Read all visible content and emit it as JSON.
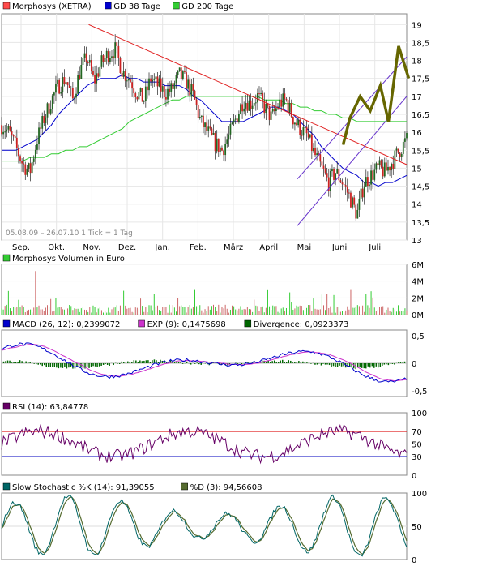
{
  "chart_data": [
    {
      "type": "candlestick",
      "legend": [
        {
          "label": "Morphosys (XETRA)",
          "color": "#ff4b4b"
        },
        {
          "label": "GD 38 Tage",
          "color": "#0000cc"
        },
        {
          "label": "GD 200 Tage",
          "color": "#33cc33"
        }
      ],
      "range_note": "05.08.09 – 26.07.10   1 Tick = 1 Tag",
      "x_ticks": [
        "Sep.",
        "Okt.",
        "Nov.",
        "Dez.",
        "Jan.",
        "Feb.",
        "März",
        "April",
        "Mai",
        "Juni",
        "Juli"
      ],
      "y_ticks": [
        "19",
        "18,5",
        "18",
        "17,5",
        "17",
        "16,5",
        "16",
        "15,5",
        "15",
        "14,5",
        "14",
        "13,5",
        "13"
      ],
      "ylim": [
        13,
        19.3
      ],
      "price": [
        16.2,
        16.0,
        15.6,
        15.1,
        14.9,
        15.8,
        16.4,
        16.9,
        17.3,
        17.5,
        16.9,
        17.7,
        18.1,
        17.4,
        17.9,
        18.2,
        18.3,
        17.7,
        17.5,
        17.1,
        16.9,
        17.5,
        17.3,
        17.1,
        17.2,
        17.6,
        17.4,
        17.0,
        16.3,
        16.0,
        15.7,
        15.5,
        15.9,
        16.4,
        16.9,
        16.8,
        17.0,
        16.7,
        16.4,
        16.8,
        16.9,
        16.4,
        16.1,
        15.9,
        15.4,
        15.0,
        14.6,
        14.9,
        14.6,
        14.2,
        13.7,
        14.6,
        14.8,
        15.0,
        14.9,
        15.2,
        15.5,
        15.8
      ],
      "sma38": [
        15.5,
        15.5,
        15.5,
        15.6,
        15.7,
        15.8,
        16.0,
        16.2,
        16.5,
        16.7,
        16.9,
        17.1,
        17.3,
        17.4,
        17.5,
        17.5,
        17.5,
        17.6,
        17.5,
        17.5,
        17.4,
        17.4,
        17.4,
        17.3,
        17.3,
        17.3,
        17.2,
        17.0,
        16.9,
        16.7,
        16.5,
        16.3,
        16.3,
        16.3,
        16.3,
        16.4,
        16.5,
        16.6,
        16.7,
        16.7,
        16.6,
        16.5,
        16.3,
        16.1,
        15.9,
        15.6,
        15.4,
        15.2,
        15.0,
        14.9,
        14.8,
        14.6,
        14.6,
        14.5,
        14.6,
        14.6,
        14.7,
        14.8
      ],
      "sma200": [
        15.2,
        15.2,
        15.2,
        15.2,
        15.3,
        15.3,
        15.3,
        15.4,
        15.4,
        15.5,
        15.5,
        15.6,
        15.6,
        15.7,
        15.8,
        15.9,
        16.0,
        16.1,
        16.3,
        16.4,
        16.5,
        16.6,
        16.7,
        16.8,
        16.9,
        16.9,
        17.0,
        17.0,
        17.0,
        17.0,
        17.0,
        17.0,
        17.0,
        17.0,
        17.0,
        17.0,
        17.0,
        16.9,
        16.9,
        16.9,
        16.8,
        16.8,
        16.7,
        16.7,
        16.6,
        16.6,
        16.5,
        16.5,
        16.4,
        16.4,
        16.3,
        16.3,
        16.3,
        16.3,
        16.3,
        16.3,
        16.3,
        16.3
      ],
      "trend_lines": [
        {
          "name": "downtrend",
          "from": [
            0.215,
            19.0
          ],
          "to": [
            1.0,
            15.1
          ]
        },
        {
          "name": "channel-upper",
          "from": [
            0.73,
            14.7
          ],
          "to": [
            1.0,
            18.1
          ]
        },
        {
          "name": "channel-lower",
          "from": [
            0.73,
            13.4
          ],
          "to": [
            1.0,
            17.0
          ]
        }
      ],
      "forecast": [
        {
          "x": 0.843,
          "y": 15.65
        },
        {
          "x": 0.86,
          "y": 16.4
        },
        {
          "x": 0.885,
          "y": 17.0
        },
        {
          "x": 0.91,
          "y": 16.6
        },
        {
          "x": 0.935,
          "y": 17.3
        },
        {
          "x": 0.955,
          "y": 16.3
        },
        {
          "x": 0.98,
          "y": 18.4
        },
        {
          "x": 1.005,
          "y": 17.5
        }
      ]
    },
    {
      "type": "bar",
      "legend": [
        {
          "label": "Morphosys Volumen in Euro",
          "color": "#33cc33"
        }
      ],
      "y_ticks": [
        "6M",
        "4M",
        "2M",
        "0M"
      ],
      "ylim": [
        0,
        6
      ]
    },
    {
      "type": "line",
      "legend": [
        {
          "label": "MACD (26, 12): 0,2399072",
          "color": "#0000cc"
        },
        {
          "label": "EXP (9): 0,1475698",
          "color": "#cc33cc"
        },
        {
          "label": "Divergence: 0,0923373",
          "color": "#006600"
        }
      ],
      "y_ticks": [
        "0,5",
        "0",
        "-0,5"
      ],
      "ylim": [
        -0.6,
        0.6
      ]
    },
    {
      "type": "line",
      "legend": [
        {
          "label": "RSI (14): 63,84778",
          "color": "#660066"
        }
      ],
      "y_ticks": [
        "100",
        "70",
        "50",
        "30",
        "0"
      ],
      "ylim": [
        0,
        100
      ],
      "levels": [
        70,
        30
      ]
    },
    {
      "type": "line",
      "legend": [
        {
          "label": "Slow Stochastic %K (14): 91,39055",
          "color": "#006666"
        },
        {
          "label": "%D (3): 94,56608",
          "color": "#556b2f"
        }
      ],
      "y_ticks": [
        "100",
        "50",
        "0"
      ],
      "ylim": [
        0,
        100
      ]
    }
  ]
}
